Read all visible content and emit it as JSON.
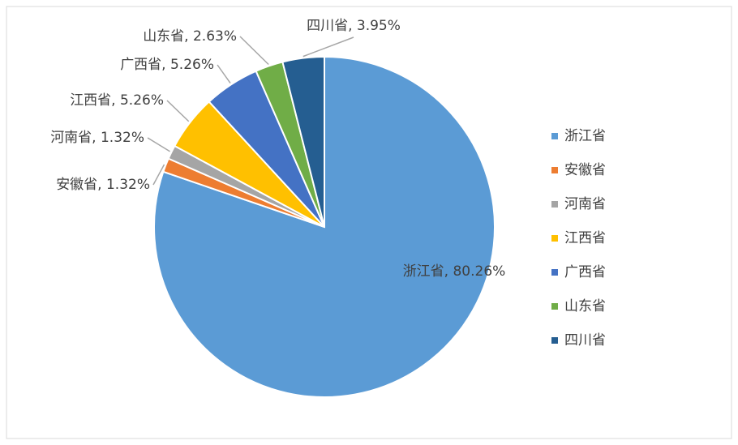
{
  "chart_data": {
    "type": "pie",
    "categories": [
      "浙江省",
      "安徽省",
      "河南省",
      "江西省",
      "广西省",
      "山东省",
      "四川省"
    ],
    "values": [
      80.26,
      1.32,
      1.32,
      5.26,
      5.26,
      2.63,
      3.95
    ],
    "value_labels": [
      "浙江省, 80.26%",
      "安徽省, 1.32%",
      "河南省, 1.32%",
      "江西省, 5.26%",
      "广西省, 5.26%",
      "山东省, 2.63%",
      "四川省, 3.95%"
    ],
    "colors": [
      "#5b9bd5",
      "#ed7d31",
      "#a5a5a5",
      "#ffc000",
      "#4472c4",
      "#70ad47",
      "#255e91"
    ],
    "legend": "right"
  }
}
